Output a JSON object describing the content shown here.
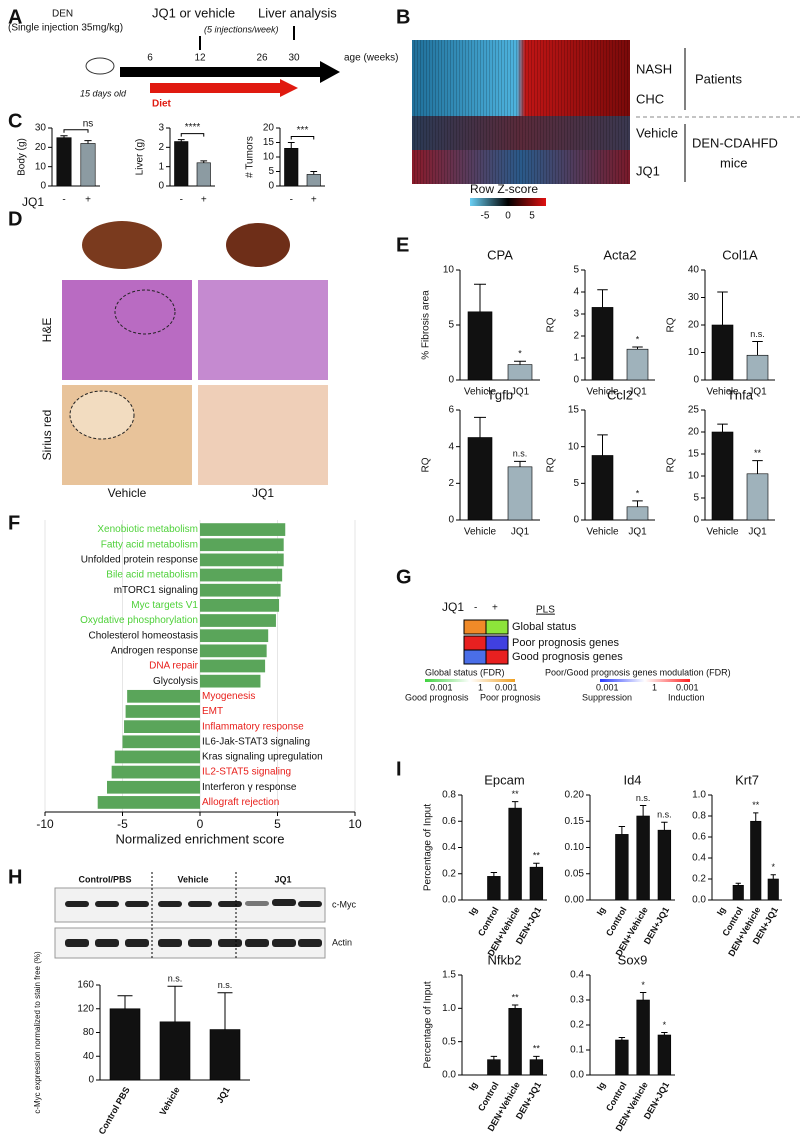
{
  "panel_letters": [
    "A",
    "B",
    "C",
    "D",
    "E",
    "F",
    "G",
    "H",
    "I"
  ],
  "panels": {
    "A": {
      "den": "DEN",
      "injection": "(Single injection 35mg/kg)",
      "age": "15 days old",
      "diet": "Diet",
      "weeks": [
        "6",
        "12",
        "26",
        "30"
      ],
      "axis": "age (weeks)",
      "treatment": "JQ1 or vehicle",
      "schedule": "(5 injections/week)",
      "analysis": "Liver analysis"
    },
    "B": {
      "rows": [
        "NASH",
        "CHC",
        "Vehicle",
        "JQ1"
      ],
      "groups": [
        "Patients",
        "DEN-CDAHFD",
        "mice"
      ],
      "scale_title": "Row Z-score",
      "scale_ticks": [
        "-5",
        "0",
        "5"
      ]
    },
    "C": {
      "group_label": "JQ1"
    },
    "D": {
      "stains": [
        "H&E",
        "Sirius red"
      ],
      "groups": [
        "Vehicle",
        "JQ1"
      ]
    },
    "G": {
      "jq1": "JQ1",
      "minus": "-",
      "plus": "+",
      "method": "PLS",
      "rows": [
        "Global status",
        "Poor prognosis genes",
        "Good prognosis genes"
      ],
      "legend1_title": "Global status (FDR)",
      "legend1_ticks": [
        "0.001",
        "1",
        "0.001"
      ],
      "legend1_ends": [
        "Good prognosis",
        "Poor prognosis"
      ],
      "legend2_title": "Poor/Good prognosis genes modulation (FDR)",
      "legend2_ticks": [
        "0.001",
        "1",
        "0.001"
      ],
      "legend2_ends": [
        "Suppression",
        "Induction"
      ]
    },
    "H": {
      "groups": [
        "Control/PBS",
        "Vehicle",
        "JQ1"
      ],
      "bands": [
        "c-Myc",
        "Actin"
      ]
    }
  },
  "chart_data": [
    {
      "type": "bar",
      "ylabel": "Body (g)",
      "categories": [
        "-",
        "+"
      ],
      "values": [
        25,
        22
      ],
      "errors": [
        1,
        1.5
      ],
      "colors": [
        "#111111",
        "#8c9ba2"
      ],
      "ylim": [
        0,
        30
      ],
      "yticks": [
        0,
        10,
        20,
        30
      ],
      "annotation": "ns"
    },
    {
      "type": "bar",
      "ylabel": "Liver (g)",
      "categories": [
        "-",
        "+"
      ],
      "values": [
        2.3,
        1.2
      ],
      "errors": [
        0.1,
        0.1
      ],
      "colors": [
        "#111111",
        "#8c9ba2"
      ],
      "ylim": [
        0,
        3
      ],
      "yticks": [
        0,
        1,
        2,
        3
      ],
      "annotation": "****"
    },
    {
      "type": "bar",
      "ylabel": "# Tumors",
      "categories": [
        "-",
        "+"
      ],
      "values": [
        13,
        4
      ],
      "errors": [
        2,
        1
      ],
      "colors": [
        "#111111",
        "#8c9ba2"
      ],
      "ylim": [
        0,
        20
      ],
      "yticks": [
        0,
        5,
        10,
        15,
        20
      ],
      "annotation": "***"
    },
    {
      "type": "bar",
      "title": "CPA",
      "ylabel": "% Fibrosis area",
      "categories": [
        "Vehicle",
        "JQ1"
      ],
      "values": [
        6.2,
        1.4
      ],
      "errors": [
        2.5,
        0.3
      ],
      "colors": [
        "#111111",
        "#9fb2bb"
      ],
      "ylim": [
        0,
        10
      ],
      "yticks": [
        0,
        5,
        10
      ],
      "annotations": [
        null,
        "*"
      ]
    },
    {
      "type": "bar",
      "title": "Acta2",
      "ylabel": "RQ",
      "categories": [
        "Vehicle",
        "JQ1"
      ],
      "values": [
        3.3,
        1.4
      ],
      "errors": [
        0.8,
        0.1
      ],
      "colors": [
        "#111111",
        "#9fb2bb"
      ],
      "ylim": [
        0,
        5
      ],
      "yticks": [
        0,
        1,
        2,
        3,
        4,
        5
      ],
      "annotations": [
        null,
        "*"
      ]
    },
    {
      "type": "bar",
      "title": "Col1A",
      "ylabel": "RQ",
      "categories": [
        "Vehicle",
        "JQ1"
      ],
      "values": [
        20,
        9
      ],
      "errors": [
        12,
        5
      ],
      "colors": [
        "#111111",
        "#9fb2bb"
      ],
      "ylim": [
        0,
        40
      ],
      "yticks": [
        0,
        10,
        20,
        30,
        40
      ],
      "annotations": [
        null,
        "n.s."
      ]
    },
    {
      "type": "bar",
      "title": "Tgfb",
      "ylabel": "RQ",
      "categories": [
        "Vehicle",
        "JQ1"
      ],
      "values": [
        4.5,
        2.9
      ],
      "errors": [
        1.1,
        0.3
      ],
      "colors": [
        "#111111",
        "#9fb2bb"
      ],
      "ylim": [
        0,
        6
      ],
      "yticks": [
        0,
        2,
        4,
        6
      ],
      "annotations": [
        null,
        "n.s."
      ]
    },
    {
      "type": "bar",
      "title": "Ccl2",
      "ylabel": "RQ",
      "categories": [
        "Vehicle",
        "JQ1"
      ],
      "values": [
        8.8,
        1.8
      ],
      "errors": [
        2.8,
        0.8
      ],
      "colors": [
        "#111111",
        "#9fb2bb"
      ],
      "ylim": [
        0,
        15
      ],
      "yticks": [
        0,
        5,
        10,
        15
      ],
      "annotations": [
        null,
        "*"
      ]
    },
    {
      "type": "bar",
      "title": "Tnfa",
      "ylabel": "RQ",
      "categories": [
        "Vehicle",
        "JQ1"
      ],
      "values": [
        20,
        10.5
      ],
      "errors": [
        1.8,
        3
      ],
      "colors": [
        "#111111",
        "#9fb2bb"
      ],
      "ylim": [
        0,
        25
      ],
      "yticks": [
        0,
        5,
        10,
        15,
        20,
        25
      ],
      "annotations": [
        null,
        "**"
      ]
    },
    {
      "type": "hbar",
      "xlabel": "Normalized enrichment score",
      "color": "#5aa55a",
      "categories": [
        "Xenobiotic metabolism",
        "Fatty acid metabolism",
        "Unfolded protein response",
        "Bile acid metabolism",
        "mTORC1 signaling",
        "Myc targets V1",
        "Oxydative phosphorylation",
        "Cholesterol homeostasis",
        "Androgen response",
        "DNA repair",
        "Glycolysis",
        "Myogenesis",
        "EMT",
        "Inflammatory response",
        "IL6-Jak-STAT3 signaling",
        "Kras signaling upregulation",
        "IL2-STAT5 signaling",
        "Interferon γ response",
        "Allograft rejection"
      ],
      "label_colors": [
        "#4fd13a",
        "#4fd13a",
        "#111111",
        "#4fd13a",
        "#111111",
        "#4fd13a",
        "#4fd13a",
        "#111111",
        "#111111",
        "#e8201c",
        "#111111",
        "#e8201c",
        "#e8201c",
        "#e8201c",
        "#111111",
        "#111111",
        "#e8201c",
        "#111111",
        "#e8201c"
      ],
      "values": [
        5.5,
        5.4,
        5.4,
        5.3,
        5.2,
        5.1,
        4.9,
        4.4,
        4.3,
        4.2,
        3.9,
        -4.7,
        -4.8,
        -4.9,
        -5.0,
        -5.5,
        -5.7,
        -6.0,
        -6.6
      ],
      "xlim": [
        -10,
        10
      ],
      "xticks": [
        -10,
        -5,
        0,
        5,
        10
      ],
      "grid": true
    },
    {
      "type": "bar",
      "ylabel": "c-Myc expression normalized to stain free (%)",
      "categories": [
        "Control PBS",
        "Vehicle",
        "JQ1"
      ],
      "values": [
        120,
        98,
        85
      ],
      "errors": [
        22,
        60,
        62
      ],
      "colors": [
        "#111111",
        "#111111",
        "#111111"
      ],
      "ylim": [
        0,
        160
      ],
      "yticks": [
        0,
        40,
        80,
        120,
        160
      ],
      "annotations": [
        null,
        "n.s.",
        "n.s."
      ]
    },
    {
      "type": "bar",
      "title": "Epcam",
      "ylabel": "Percentage of Input",
      "categories": [
        "Ig",
        "Control",
        "DEN+Vehicle",
        "DEN+JQ1"
      ],
      "values": [
        0,
        0.18,
        0.7,
        0.25
      ],
      "errors": [
        0,
        0.03,
        0.05,
        0.03
      ],
      "colors": [
        "#111111",
        "#111111",
        "#111111",
        "#111111"
      ],
      "ylim": [
        0,
        0.8
      ],
      "yticks": [
        {
          "value": 0,
          "label": "0.0"
        },
        0.2,
        0.4,
        0.6,
        0.8
      ],
      "annotations": [
        null,
        null,
        "**",
        "**"
      ]
    },
    {
      "type": "bar",
      "title": "Id4",
      "categories": [
        "Ig",
        "Control",
        "DEN+Vehicle",
        "DEN+JQ1"
      ],
      "values": [
        0,
        0.125,
        0.16,
        0.133
      ],
      "errors": [
        0,
        0.015,
        0.02,
        0.015
      ],
      "colors": [
        "#111111",
        "#111111",
        "#111111",
        "#111111"
      ],
      "ylim": [
        0,
        0.2
      ],
      "yticks": [
        {
          "value": 0,
          "label": "0.00"
        },
        {
          "value": 0.05,
          "label": "0.05"
        },
        {
          "value": 0.1,
          "label": "0.10"
        },
        {
          "value": 0.15,
          "label": "0.15"
        },
        {
          "value": 0.2,
          "label": "0.20"
        }
      ],
      "annotations": [
        null,
        null,
        "n.s.",
        "n.s."
      ]
    },
    {
      "type": "bar",
      "title": "Krt7",
      "categories": [
        "Ig",
        "Control",
        "DEN+Vehicle",
        "DEN+JQ1"
      ],
      "values": [
        0,
        0.14,
        0.75,
        0.2
      ],
      "errors": [
        0,
        0.02,
        0.08,
        0.04
      ],
      "colors": [
        "#111111",
        "#111111",
        "#111111",
        "#111111"
      ],
      "ylim": [
        0,
        1
      ],
      "yticks": [
        {
          "value": 0,
          "label": "0.0"
        },
        0.2,
        0.4,
        0.6,
        0.8,
        {
          "value": 1,
          "label": "1.0"
        }
      ],
      "annotations": [
        null,
        null,
        "**",
        "*"
      ]
    },
    {
      "type": "bar",
      "title": "Nfkb2",
      "ylabel": "Percentage of Input",
      "categories": [
        "Ig",
        "Control",
        "DEN+Vehicle",
        "DEN+JQ1"
      ],
      "values": [
        0,
        0.23,
        1.0,
        0.23
      ],
      "errors": [
        0,
        0.05,
        0.05,
        0.05
      ],
      "colors": [
        "#111111",
        "#111111",
        "#111111",
        "#111111"
      ],
      "ylim": [
        0,
        1.5
      ],
      "yticks": [
        {
          "value": 0,
          "label": "0.0"
        },
        0.5,
        {
          "value": 1,
          "label": "1.0"
        },
        1.5
      ],
      "annotations": [
        null,
        null,
        "**",
        "**"
      ]
    },
    {
      "type": "bar",
      "title": "Sox9",
      "categories": [
        "Ig",
        "Control",
        "DEN+Vehicle",
        "DEN+JQ1"
      ],
      "values": [
        0,
        0.14,
        0.3,
        0.16
      ],
      "errors": [
        0,
        0.01,
        0.03,
        0.01
      ],
      "colors": [
        "#111111",
        "#111111",
        "#111111",
        "#111111"
      ],
      "ylim": [
        0,
        0.4
      ],
      "yticks": [
        {
          "value": 0,
          "label": "0.0"
        },
        0.1,
        0.2,
        0.3,
        0.4
      ],
      "annotations": [
        null,
        null,
        "*",
        "*"
      ]
    }
  ]
}
